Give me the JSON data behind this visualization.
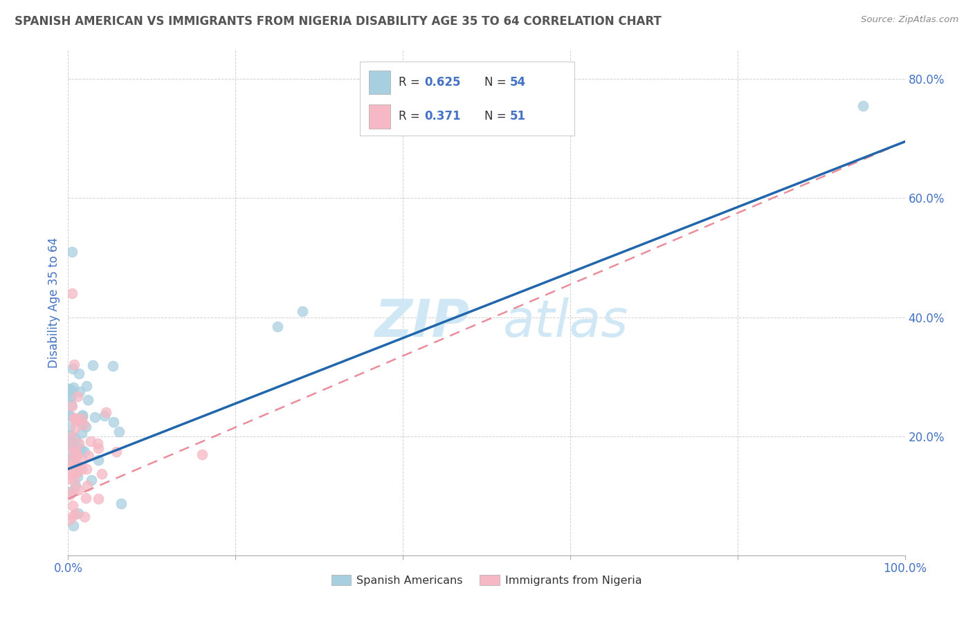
{
  "title": "SPANISH AMERICAN VS IMMIGRANTS FROM NIGERIA DISABILITY AGE 35 TO 64 CORRELATION CHART",
  "source": "Source: ZipAtlas.com",
  "ylabel": "Disability Age 35 to 64",
  "r_blue": 0.625,
  "n_blue": 54,
  "r_pink": 0.371,
  "n_pink": 51,
  "legend_labels": [
    "Spanish Americans",
    "Immigrants from Nigeria"
  ],
  "blue_color": "#a8cfe0",
  "pink_color": "#f5b8c4",
  "blue_line_color": "#2166ac",
  "pink_line_color": "#e88090",
  "xlim": [
    0.0,
    1.0
  ],
  "ylim": [
    0.0,
    0.85
  ],
  "background_color": "#ffffff",
  "grid_color": "#cccccc",
  "title_color": "#555555",
  "axis_label_color": "#4472c4",
  "tick_label_color": "#4472c4",
  "blue_line_y0": 0.145,
  "blue_line_y1": 0.695,
  "pink_line_y0": 0.095,
  "pink_line_y1": 0.695
}
